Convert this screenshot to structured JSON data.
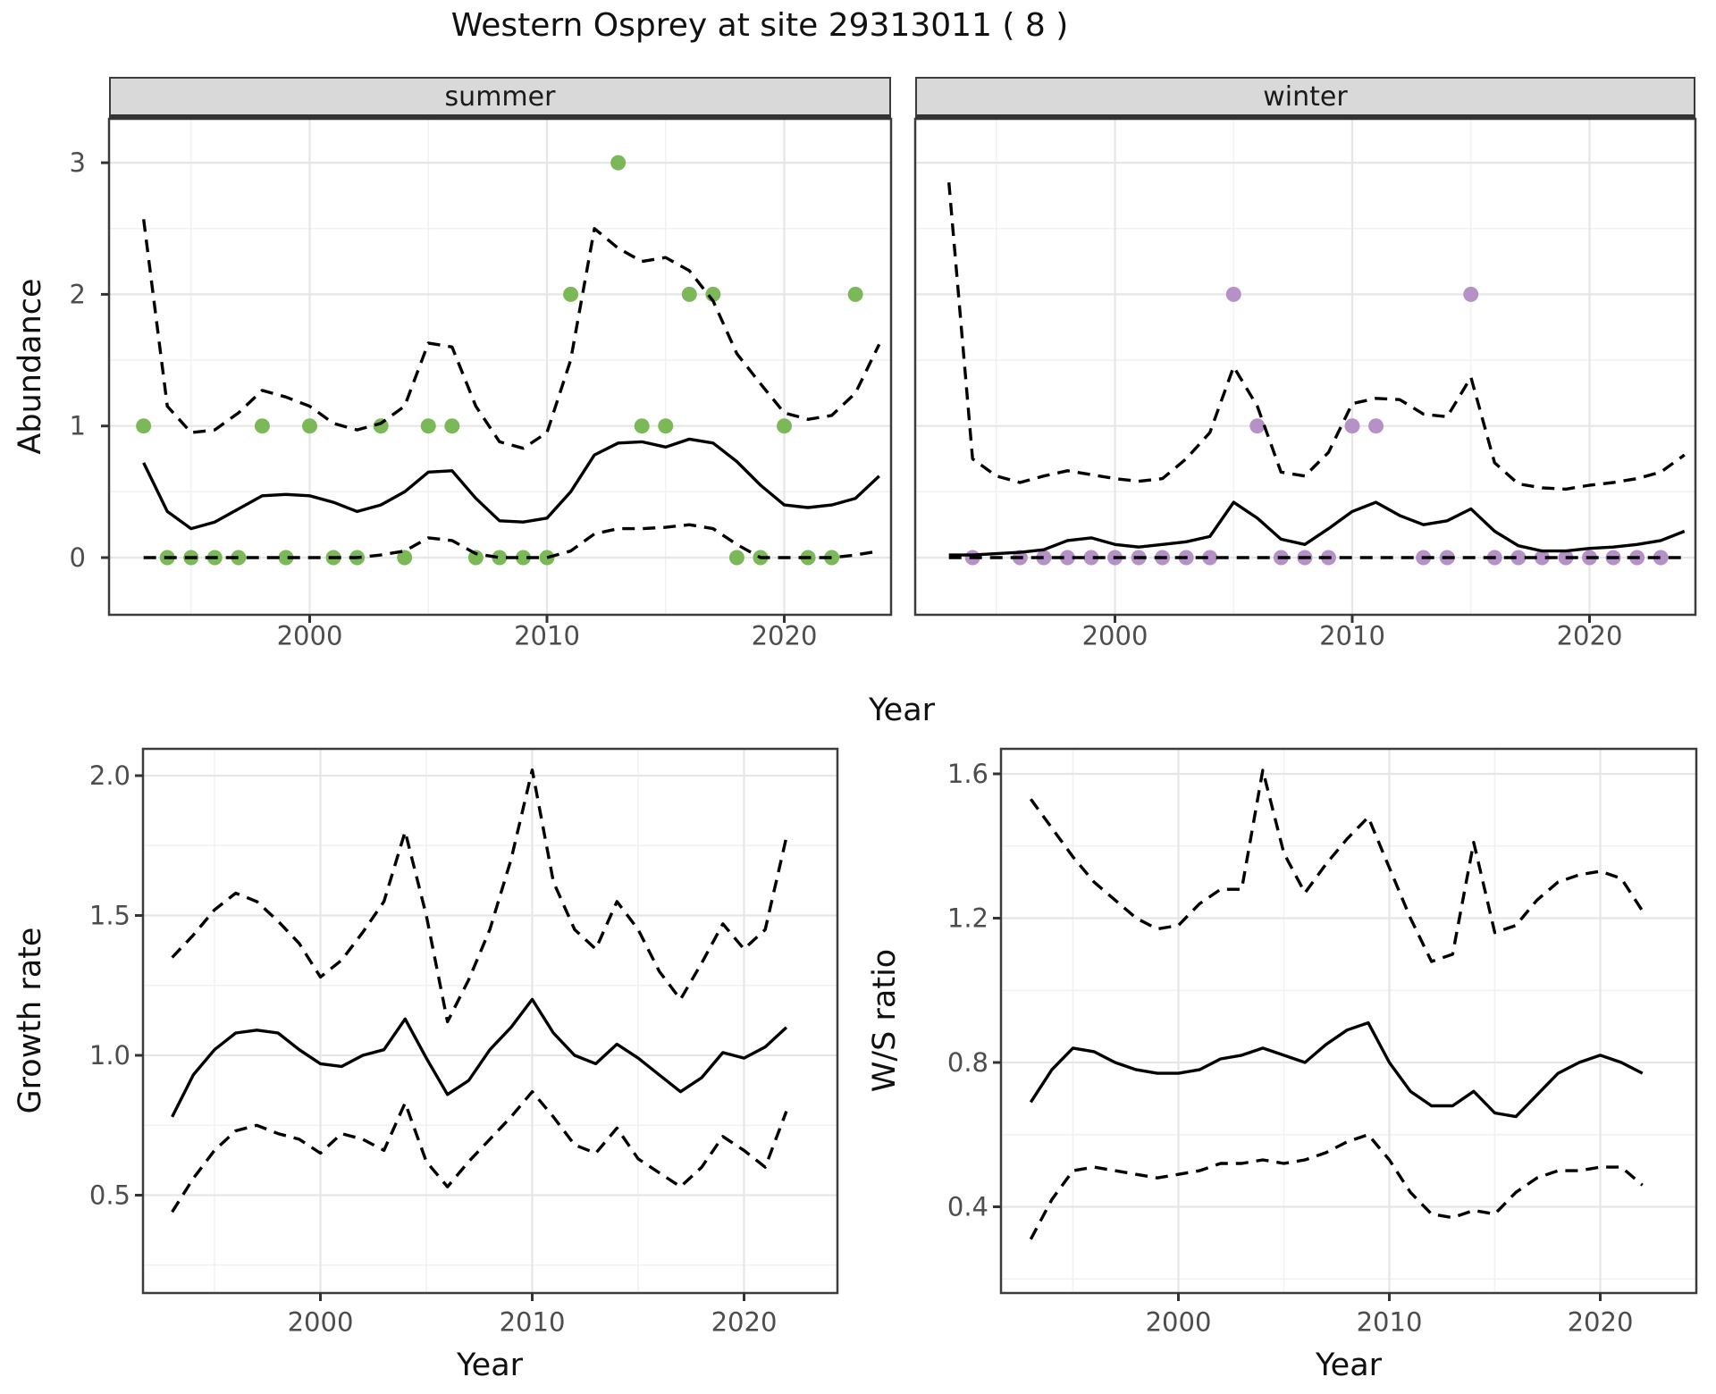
{
  "title": "Western Osprey at site 29313011 ( 8 )",
  "facets": [
    {
      "label": "summer"
    },
    {
      "label": "winter"
    }
  ],
  "axis": {
    "year_label": "Year",
    "abundance_label": "Abundance",
    "growth_label": "Growth rate",
    "ws_label": "W/S ratio"
  },
  "colors": {
    "summer_points": "#7BB857",
    "winter_points": "#B591C8",
    "line": "#000000",
    "strip_bg": "#D9D9D9",
    "grid_major": "#E6E6E6",
    "grid_minor": "#F2F2F2",
    "panel_border": "#3c3c3c",
    "tick_text": "#4d4d4d"
  },
  "chart_data": [
    {
      "name": "abundance-summer",
      "type": "line",
      "facet": "summer",
      "title": "",
      "xlabel": "Year",
      "ylabel": "Abundance",
      "x_ticks": [
        {
          "v": 2000,
          "label": "2000"
        },
        {
          "v": 2010,
          "label": "2010"
        },
        {
          "v": 2020,
          "label": "2020"
        }
      ],
      "y_ticks": [
        {
          "v": 0,
          "label": "0"
        },
        {
          "v": 1,
          "label": "1"
        },
        {
          "v": 2,
          "label": "2"
        },
        {
          "v": 3,
          "label": "3"
        }
      ],
      "xlim": [
        1991.5,
        2024.5
      ],
      "ylim": [
        -0.4,
        3.33
      ],
      "series": [
        {
          "name": "mean",
          "style": "solid",
          "x_start": 1993,
          "values": [
            0.72,
            0.35,
            0.22,
            0.27,
            0.37,
            0.47,
            0.48,
            0.47,
            0.42,
            0.35,
            0.4,
            0.5,
            0.65,
            0.66,
            0.45,
            0.28,
            0.27,
            0.3,
            0.5,
            0.78,
            0.87,
            0.88,
            0.84,
            0.9,
            0.87,
            0.73,
            0.55,
            0.4,
            0.38,
            0.4,
            0.45,
            0.62
          ]
        },
        {
          "name": "upper95",
          "style": "dashed",
          "x_start": 1993,
          "values": [
            2.57,
            1.15,
            0.95,
            0.97,
            1.1,
            1.27,
            1.22,
            1.15,
            1.02,
            0.97,
            1.02,
            1.15,
            1.63,
            1.6,
            1.15,
            0.88,
            0.83,
            0.95,
            1.5,
            2.5,
            2.35,
            2.25,
            2.28,
            2.18,
            1.95,
            1.55,
            1.32,
            1.1,
            1.05,
            1.08,
            1.25,
            1.62
          ]
        },
        {
          "name": "lower95",
          "style": "dashed",
          "x_start": 1993,
          "values": [
            0.0,
            0.0,
            0.0,
            0.0,
            0.0,
            0.0,
            0.0,
            0.0,
            0.0,
            0.0,
            0.02,
            0.05,
            0.15,
            0.13,
            0.03,
            0.0,
            0.0,
            0.0,
            0.05,
            0.18,
            0.22,
            0.22,
            0.23,
            0.25,
            0.22,
            0.1,
            0.0,
            0.0,
            0.0,
            0.0,
            0.02,
            0.05
          ]
        }
      ],
      "points_color_key": "summer_points",
      "points": [
        [
          1993,
          1
        ],
        [
          1994,
          0
        ],
        [
          1995,
          0
        ],
        [
          1996,
          0
        ],
        [
          1997,
          0
        ],
        [
          1998,
          1
        ],
        [
          1999,
          0
        ],
        [
          2000,
          1
        ],
        [
          2001,
          0
        ],
        [
          2002,
          0
        ],
        [
          2003,
          1
        ],
        [
          2004,
          0
        ],
        [
          2005,
          1
        ],
        [
          2006,
          1
        ],
        [
          2007,
          0
        ],
        [
          2008,
          0
        ],
        [
          2009,
          0
        ],
        [
          2010,
          0
        ],
        [
          2011,
          2
        ],
        [
          2013,
          3
        ],
        [
          2014,
          1
        ],
        [
          2015,
          1
        ],
        [
          2016,
          2
        ],
        [
          2017,
          2
        ],
        [
          2018,
          0
        ],
        [
          2019,
          0
        ],
        [
          2020,
          1
        ],
        [
          2021,
          0
        ],
        [
          2022,
          0
        ],
        [
          2023,
          2
        ]
      ]
    },
    {
      "name": "abundance-winter",
      "type": "line",
      "facet": "winter",
      "title": "",
      "xlabel": "Year",
      "ylabel": "Abundance",
      "x_ticks": [
        {
          "v": 2000,
          "label": "2000"
        },
        {
          "v": 2010,
          "label": "2010"
        },
        {
          "v": 2020,
          "label": "2020"
        }
      ],
      "y_ticks": [
        {
          "v": 0,
          "label": "0"
        },
        {
          "v": 1,
          "label": "1"
        },
        {
          "v": 2,
          "label": "2"
        },
        {
          "v": 3,
          "label": "3"
        }
      ],
      "xlim": [
        1991.5,
        2024.5
      ],
      "ylim": [
        -0.4,
        3.33
      ],
      "series": [
        {
          "name": "mean",
          "style": "solid",
          "x_start": 1993,
          "values": [
            0.02,
            0.02,
            0.03,
            0.04,
            0.06,
            0.13,
            0.15,
            0.1,
            0.08,
            0.1,
            0.12,
            0.16,
            0.42,
            0.3,
            0.14,
            0.1,
            0.22,
            0.35,
            0.42,
            0.32,
            0.25,
            0.28,
            0.37,
            0.2,
            0.09,
            0.05,
            0.05,
            0.07,
            0.08,
            0.1,
            0.13,
            0.2
          ]
        },
        {
          "name": "upper95",
          "style": "dashed",
          "x_start": 1993,
          "values": [
            2.85,
            0.75,
            0.62,
            0.57,
            0.62,
            0.66,
            0.63,
            0.6,
            0.58,
            0.6,
            0.75,
            0.95,
            1.45,
            1.15,
            0.65,
            0.62,
            0.8,
            1.17,
            1.21,
            1.2,
            1.09,
            1.07,
            1.37,
            0.72,
            0.56,
            0.53,
            0.52,
            0.55,
            0.57,
            0.6,
            0.65,
            0.78
          ]
        },
        {
          "name": "lower95",
          "style": "dashed",
          "x_start": 1993,
          "values": [
            0,
            0,
            0,
            0,
            0,
            0,
            0,
            0,
            0,
            0,
            0,
            0,
            0,
            0,
            0,
            0,
            0,
            0,
            0,
            0,
            0,
            0,
            0,
            0,
            0,
            0,
            0,
            0,
            0,
            0,
            0,
            0
          ]
        }
      ],
      "points_color_key": "winter_points",
      "points": [
        [
          1994,
          0
        ],
        [
          1996,
          0
        ],
        [
          1997,
          0
        ],
        [
          1998,
          0
        ],
        [
          1999,
          0
        ],
        [
          2000,
          0
        ],
        [
          2001,
          0
        ],
        [
          2002,
          0
        ],
        [
          2003,
          0
        ],
        [
          2004,
          0
        ],
        [
          2005,
          2
        ],
        [
          2006,
          1
        ],
        [
          2007,
          0
        ],
        [
          2008,
          0
        ],
        [
          2009,
          0
        ],
        [
          2010,
          1
        ],
        [
          2011,
          1
        ],
        [
          2013,
          0
        ],
        [
          2014,
          0
        ],
        [
          2015,
          2
        ],
        [
          2016,
          0
        ],
        [
          2017,
          0
        ],
        [
          2018,
          0
        ],
        [
          2019,
          0
        ],
        [
          2020,
          0
        ],
        [
          2021,
          0
        ],
        [
          2022,
          0
        ],
        [
          2023,
          0
        ]
      ]
    },
    {
      "name": "growth-rate",
      "type": "line",
      "facet": "",
      "title": "",
      "xlabel": "Year",
      "ylabel": "Growth rate",
      "x_ticks": [
        {
          "v": 2000,
          "label": "2000"
        },
        {
          "v": 2010,
          "label": "2010"
        },
        {
          "v": 2020,
          "label": "2020"
        }
      ],
      "y_ticks": [
        {
          "v": 0.5,
          "label": "0.5"
        },
        {
          "v": 1.0,
          "label": "1.0"
        },
        {
          "v": 1.5,
          "label": "1.5"
        },
        {
          "v": 2.0,
          "label": "2.0"
        }
      ],
      "xlim": [
        1991.6,
        2024.4
      ],
      "ylim": [
        0.15,
        2.08
      ],
      "series": [
        {
          "name": "mean",
          "style": "solid",
          "x_start": 1993,
          "values": [
            0.78,
            0.93,
            1.02,
            1.08,
            1.09,
            1.08,
            1.02,
            0.97,
            0.96,
            1.0,
            1.02,
            1.13,
            0.99,
            0.86,
            0.91,
            1.02,
            1.1,
            1.2,
            1.08,
            1.0,
            0.97,
            1.04,
            0.99,
            0.93,
            0.87,
            0.92,
            1.01,
            0.99,
            1.03,
            1.1
          ]
        },
        {
          "name": "upper95",
          "style": "dashed",
          "x_start": 1993,
          "values": [
            1.35,
            1.43,
            1.52,
            1.58,
            1.55,
            1.48,
            1.4,
            1.28,
            1.34,
            1.44,
            1.55,
            1.8,
            1.5,
            1.12,
            1.27,
            1.45,
            1.7,
            2.02,
            1.62,
            1.45,
            1.38,
            1.55,
            1.45,
            1.3,
            1.2,
            1.33,
            1.47,
            1.38,
            1.45,
            1.78
          ]
        },
        {
          "name": "lower95",
          "style": "dashed",
          "x_start": 1993,
          "values": [
            0.44,
            0.56,
            0.66,
            0.73,
            0.75,
            0.72,
            0.7,
            0.65,
            0.72,
            0.7,
            0.66,
            0.83,
            0.62,
            0.53,
            0.62,
            0.7,
            0.78,
            0.87,
            0.78,
            0.68,
            0.65,
            0.74,
            0.63,
            0.58,
            0.53,
            0.6,
            0.71,
            0.66,
            0.6,
            0.8
          ]
        }
      ],
      "points_color_key": "",
      "points": []
    },
    {
      "name": "ws-ratio",
      "type": "line",
      "facet": "",
      "title": "",
      "xlabel": "Year",
      "ylabel": "W/S ratio",
      "x_ticks": [
        {
          "v": 2000,
          "label": "2000"
        },
        {
          "v": 2010,
          "label": "2010"
        },
        {
          "v": 2020,
          "label": "2020"
        }
      ],
      "y_ticks": [
        {
          "v": 0.4,
          "label": "0.4"
        },
        {
          "v": 0.8,
          "label": "0.8"
        },
        {
          "v": 1.2,
          "label": "1.2"
        },
        {
          "v": 1.6,
          "label": "1.6"
        }
      ],
      "xlim": [
        1991.6,
        2024.6
      ],
      "ylim": [
        0.16,
        1.66
      ],
      "series": [
        {
          "name": "mean",
          "style": "solid",
          "x_start": 1993,
          "values": [
            0.69,
            0.78,
            0.84,
            0.83,
            0.8,
            0.78,
            0.77,
            0.77,
            0.78,
            0.81,
            0.82,
            0.84,
            0.82,
            0.8,
            0.85,
            0.89,
            0.91,
            0.8,
            0.72,
            0.68,
            0.68,
            0.72,
            0.66,
            0.65,
            0.71,
            0.77,
            0.8,
            0.82,
            0.8,
            0.77
          ]
        },
        {
          "name": "upper95",
          "style": "dashed",
          "x_start": 1993,
          "values": [
            1.53,
            1.45,
            1.37,
            1.3,
            1.25,
            1.2,
            1.17,
            1.18,
            1.24,
            1.28,
            1.28,
            1.61,
            1.38,
            1.27,
            1.35,
            1.42,
            1.48,
            1.34,
            1.2,
            1.08,
            1.1,
            1.41,
            1.16,
            1.18,
            1.25,
            1.3,
            1.32,
            1.33,
            1.31,
            1.22
          ]
        },
        {
          "name": "lower95",
          "style": "dashed",
          "x_start": 1993,
          "values": [
            0.31,
            0.42,
            0.5,
            0.51,
            0.5,
            0.49,
            0.48,
            0.49,
            0.5,
            0.52,
            0.52,
            0.53,
            0.52,
            0.53,
            0.55,
            0.58,
            0.6,
            0.53,
            0.44,
            0.38,
            0.37,
            0.39,
            0.38,
            0.44,
            0.48,
            0.5,
            0.5,
            0.51,
            0.51,
            0.46
          ]
        }
      ],
      "points_color_key": "",
      "points": []
    }
  ]
}
